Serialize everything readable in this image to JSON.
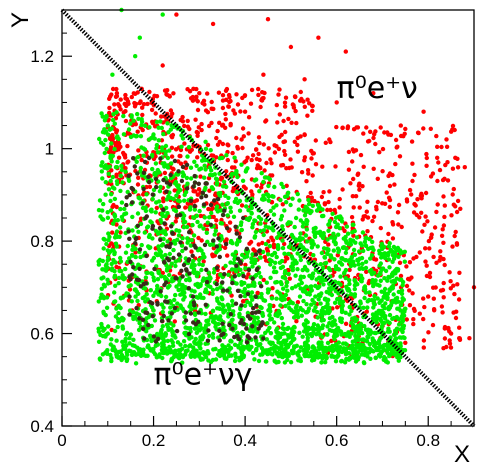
{
  "chart_data": {
    "type": "scatter",
    "title": "",
    "xlabel": "X",
    "ylabel": "Y",
    "xlim": [
      0,
      0.9
    ],
    "ylim": [
      0.4,
      1.3
    ],
    "x_ticks": [
      0,
      0.2,
      0.4,
      0.6,
      0.8
    ],
    "x_tick_labels": [
      "0",
      "0.2",
      "0.4",
      "0.6",
      "0.8"
    ],
    "y_ticks": [
      0.4,
      0.6,
      0.8,
      1.0,
      1.2
    ],
    "y_tick_labels": [
      "0.4",
      "0.6",
      "0.8",
      "1",
      "1.2"
    ],
    "grid": false,
    "annotations": [
      {
        "text": "π⁰e⁺ν",
        "x": 0.6,
        "y": 1.11
      },
      {
        "text": "π⁰e⁺νγ",
        "x": 0.2,
        "y": 0.49
      }
    ],
    "divider_line": {
      "x": [
        0,
        0.9
      ],
      "y": [
        1.3,
        0.4
      ],
      "color": "#000000",
      "style": "dotted"
    },
    "series": [
      {
        "color": "#ff0000",
        "region": {
          "x_range": [
            0.09,
            0.9
          ],
          "y_range": [
            0.54,
            1.3
          ]
        },
        "points": [
          [
            0.25,
            1.29
          ],
          [
            0.33,
            1.27
          ],
          [
            0.45,
            1.28
          ],
          [
            0.5,
            1.22
          ],
          [
            0.56,
            1.24
          ],
          [
            0.62,
            1.21
          ],
          [
            0.44,
            1.16
          ],
          [
            0.53,
            1.15
          ],
          [
            0.6,
            1.1
          ],
          [
            0.68,
            1.12
          ],
          [
            0.74,
            1.05
          ],
          [
            0.79,
            1.08
          ],
          [
            0.84,
            1.02
          ],
          [
            0.88,
            0.96
          ],
          [
            0.82,
            0.93
          ],
          [
            0.77,
            0.88
          ],
          [
            0.86,
            0.82
          ],
          [
            0.7,
            0.79
          ],
          [
            0.64,
            0.72
          ],
          [
            0.72,
            0.67
          ],
          [
            0.69,
            0.62
          ],
          [
            0.75,
            0.58
          ],
          [
            0.8,
            0.68
          ],
          [
            0.85,
            0.6
          ],
          [
            0.89,
            0.59
          ],
          [
            0.9,
            0.7
          ],
          [
            0.87,
            0.87
          ],
          [
            0.55,
            0.99
          ],
          [
            0.48,
            1.03
          ],
          [
            0.4,
            1.08
          ],
          [
            0.35,
            1.05
          ],
          [
            0.3,
            1.12
          ],
          [
            0.22,
            1.18
          ],
          [
            0.12,
            1.12
          ],
          [
            0.15,
            1.03
          ]
        ]
      },
      {
        "color": "#00ee00",
        "region": {
          "x_range": [
            0.08,
            0.75
          ],
          "y_range": [
            0.53,
            1.3
          ]
        },
        "points": [
          [
            0.13,
            1.3
          ],
          [
            0.17,
            1.24
          ],
          [
            0.11,
            1.16
          ],
          [
            0.1,
            1.05
          ],
          [
            0.12,
            0.96
          ],
          [
            0.09,
            0.88
          ],
          [
            0.1,
            0.78
          ],
          [
            0.09,
            0.68
          ],
          [
            0.1,
            0.6
          ],
          [
            0.12,
            0.55
          ],
          [
            0.2,
            0.56
          ],
          [
            0.3,
            0.55
          ],
          [
            0.4,
            0.57
          ],
          [
            0.5,
            0.58
          ],
          [
            0.6,
            0.6
          ],
          [
            0.7,
            0.64
          ],
          [
            0.72,
            0.7
          ],
          [
            0.65,
            0.74
          ],
          [
            0.55,
            0.82
          ],
          [
            0.45,
            0.9
          ],
          [
            0.35,
            0.98
          ],
          [
            0.25,
            1.05
          ],
          [
            0.2,
            0.9
          ],
          [
            0.3,
            0.75
          ],
          [
            0.2,
            0.65
          ],
          [
            0.4,
            0.66
          ],
          [
            0.32,
            0.62
          ],
          [
            0.16,
            0.74
          ],
          [
            0.24,
            0.82
          ],
          [
            0.14,
            0.86
          ],
          [
            0.52,
            0.68
          ],
          [
            0.58,
            0.65
          ],
          [
            0.62,
            0.72
          ],
          [
            0.16,
            1.2
          ],
          [
            0.22,
            1.29
          ]
        ]
      }
    ]
  }
}
